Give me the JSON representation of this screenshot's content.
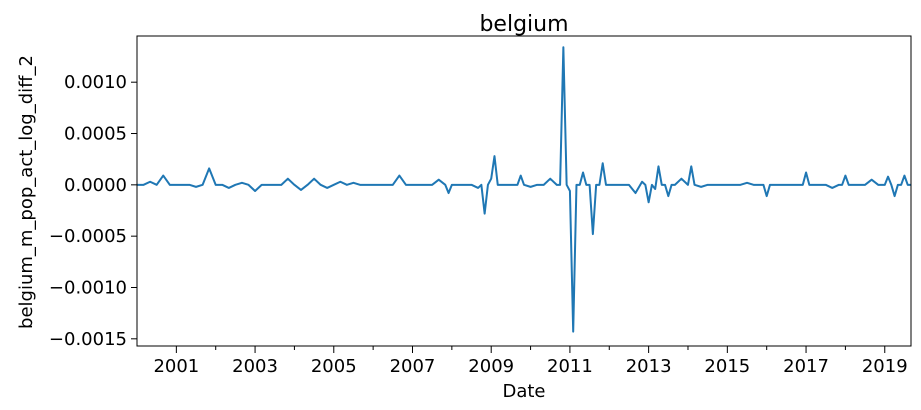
{
  "chart_data": {
    "type": "line",
    "title": "belgium",
    "xlabel": "Date",
    "ylabel": "belgium_m_pop_act_log_diff_2",
    "x_tick_labels": [
      "2001",
      "2003",
      "2005",
      "2007",
      "2009",
      "2011",
      "2013",
      "2015",
      "2017",
      "2019"
    ],
    "y_tick_labels": [
      "−0.0015",
      "−0.0010",
      "−0.0005",
      "0.0000",
      "0.0005",
      "0.0010"
    ],
    "y_ticks": [
      -0.0015,
      -0.001,
      -0.0005,
      0.0,
      0.0005,
      0.001
    ],
    "ylim": [
      -0.00157,
      0.00145
    ],
    "xlim": [
      "2000-01",
      "2019-09"
    ],
    "grid": false,
    "series": [
      {
        "color": "#1f77b4",
        "x": [
          "2000-01",
          "2000-03",
          "2000-05",
          "2000-07",
          "2000-09",
          "2000-11",
          "2001-01",
          "2001-03",
          "2001-05",
          "2001-07",
          "2001-09",
          "2001-11",
          "2002-01",
          "2002-03",
          "2002-05",
          "2002-07",
          "2002-09",
          "2002-11",
          "2003-01",
          "2003-03",
          "2003-05",
          "2003-07",
          "2003-09",
          "2003-11",
          "2004-01",
          "2004-03",
          "2004-05",
          "2004-07",
          "2004-09",
          "2004-11",
          "2005-01",
          "2005-03",
          "2005-05",
          "2005-07",
          "2005-09",
          "2005-11",
          "2006-01",
          "2006-03",
          "2006-05",
          "2006-07",
          "2006-09",
          "2006-11",
          "2007-01",
          "2007-03",
          "2007-05",
          "2007-07",
          "2007-09",
          "2007-11",
          "2008-01",
          "2008-03",
          "2008-05",
          "2008-07",
          "2008-09",
          "2008-11",
          "2009-01",
          "2009-03",
          "2009-05",
          "2009-07",
          "2009-09",
          "2009-11",
          "2010-01",
          "2010-03",
          "2010-05",
          "2010-07",
          "2010-09",
          "2010-11",
          "2011-01",
          "2011-03",
          "2011-05",
          "2011-07",
          "2011-09",
          "2011-11",
          "2012-01",
          "2012-03",
          "2012-05",
          "2012-07",
          "2012-09",
          "2012-11",
          "2013-01",
          "2013-03",
          "2013-05",
          "2013-07",
          "2013-09",
          "2013-11",
          "2014-01",
          "2014-03",
          "2014-05",
          "2014-07",
          "2014-09",
          "2014-11",
          "2015-01",
          "2015-03",
          "2015-05",
          "2015-07",
          "2015-09",
          "2015-11",
          "2016-01",
          "2016-03",
          "2016-05",
          "2016-07",
          "2016-09",
          "2016-11",
          "2017-01",
          "2017-03",
          "2017-05",
          "2017-07",
          "2017-09",
          "2017-11",
          "2018-01",
          "2018-03",
          "2018-05",
          "2018-07",
          "2018-09",
          "2018-11",
          "2019-01",
          "2019-03",
          "2019-05",
          "2019-07",
          "2019-09"
        ],
        "y": [
          0.0,
          0.0,
          3e-05,
          0.0,
          9e-05,
          0.0,
          0.0,
          0.0,
          0.0,
          -2e-05,
          0.0,
          0.00016,
          0.0,
          0.0,
          -3e-05,
          0.0,
          2e-05,
          0.0,
          -6e-05,
          0.0,
          0.0,
          0.0,
          0.0,
          6e-05,
          0.0,
          -5e-05,
          0.0,
          6e-05,
          0.0,
          -3e-05,
          0.0,
          3e-05,
          0.0,
          2e-05,
          0.0,
          0.0,
          0.0,
          0.0,
          0.0,
          0.0,
          9e-05,
          0.0,
          0.0,
          0.0,
          0.0,
          0.0,
          5e-05,
          0.0,
          0.0,
          0.0,
          0.0,
          0.0,
          -3e-05,
          0.0,
          6e-05,
          0.0,
          0.0,
          0.0,
          0.0,
          0.0,
          -2e-05,
          0.0,
          0.0,
          6e-05,
          0.0,
          2e-05,
          -6e-05,
          0.0,
          0.0,
          0.0,
          0.0,
          0.0,
          0.0,
          0.0,
          0.0,
          0.0,
          -8e-05,
          3e-05,
          0.0,
          -4e-05,
          0.0,
          0.0,
          0.0,
          6e-05,
          0.0,
          0.0,
          -2e-05,
          0.0,
          0.0,
          0.0,
          0.0,
          0.0,
          0.0,
          2e-05,
          0.0,
          0.0,
          0.0,
          -2e-05,
          0.0,
          0.0,
          0.0,
          0.0,
          3e-05,
          0.0,
          0.0,
          0.0,
          -3e-05,
          0.0,
          0.0,
          0.0,
          0.0,
          0.0,
          5e-05,
          0.0,
          0.0,
          0.0,
          0.0,
          0.0,
          0.0
        ],
        "spikes": [
          {
            "x": "2007-12",
            "y": -8e-05
          },
          {
            "x": "2008-11",
            "y": -0.00028
          },
          {
            "x": "2009-02",
            "y": 0.00028
          },
          {
            "x": "2009-10",
            "y": 9e-05
          },
          {
            "x": "2010-11",
            "y": 0.00134
          },
          {
            "x": "2011-02",
            "y": -0.00143
          },
          {
            "x": "2011-05",
            "y": 0.00012
          },
          {
            "x": "2011-08",
            "y": -0.00048
          },
          {
            "x": "2011-11",
            "y": 0.00021
          },
          {
            "x": "2013-01",
            "y": -0.00017
          },
          {
            "x": "2013-04",
            "y": 0.00018
          },
          {
            "x": "2013-07",
            "y": -0.00011
          },
          {
            "x": "2014-02",
            "y": 0.00018
          },
          {
            "x": "2016-01",
            "y": -0.00011
          },
          {
            "x": "2016-03",
            "y": 0.0
          },
          {
            "x": "2017-01",
            "y": 0.00012
          },
          {
            "x": "2018-01",
            "y": 9e-05
          },
          {
            "x": "2019-02",
            "y": 8e-05
          },
          {
            "x": "2019-04",
            "y": -0.00011
          },
          {
            "x": "2019-07",
            "y": 9e-05
          }
        ]
      }
    ]
  }
}
